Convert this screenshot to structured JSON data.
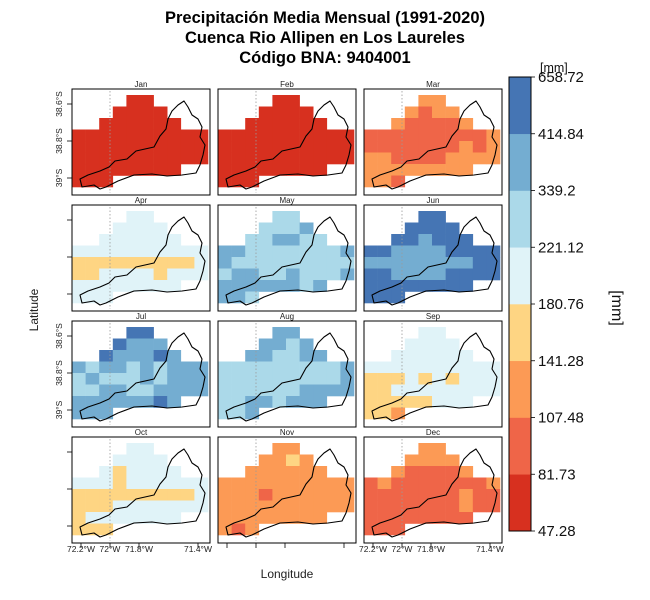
{
  "chart_data": {
    "type": "heatmap",
    "title": [
      "Precipitación Media Mensual (1991-2020)",
      "Cuenca Rio Allipen en Los Laureles",
      "Código BNA: 9404001"
    ],
    "xlabel": "Longitude",
    "ylabel": "Latitude",
    "x_tick_labels": [
      "72.2°W",
      "72°W",
      "71.8°W",
      "71.4°W"
    ],
    "y_tick_labels": [
      "38.6°S",
      "38.8°S",
      "39°S"
    ],
    "colorbar": {
      "unit_top": "[mm]",
      "unit_side": "[mm]",
      "breaks": [
        47.28,
        81.73,
        107.48,
        141.28,
        180.76,
        221.12,
        339.2,
        414.84,
        658.72
      ],
      "colors": [
        "#d7301f",
        "#ef6548",
        "#fc9a55",
        "#fed583",
        "#e0f3f8",
        "#abd9e9",
        "#74add1",
        "#4575b4"
      ]
    },
    "panels": [
      {
        "name": "Jan",
        "class_rows": [
          "....00....",
          "...0000...",
          "..000000..",
          "0000000000",
          "0000000000",
          "0000000000",
          "00000000..",
          "000......."
        ]
      },
      {
        "name": "Feb",
        "class_rows": [
          "....00....",
          "...0000...",
          "..000000..",
          "0000000000",
          "0000000000",
          "0000000000",
          "00000000..",
          "000......."
        ]
      },
      {
        "name": "Mar",
        "class_rows": [
          "....22....",
          "...2122...",
          "..211112..",
          "1111111112",
          "1111111212",
          "2211112222",
          "22222222..",
          "221......."
        ]
      },
      {
        "name": "Apr",
        "class_rows": [
          "....44....",
          "...4444...",
          "..444444..",
          "4444444444",
          "3333333334",
          "3344443444",
          "44444444..",
          "444......."
        ]
      },
      {
        "name": "May",
        "class_rows": [
          "....55....",
          "...5556...",
          "..556655..",
          "6655555556",
          "6555555555",
          "5665565556",
          "66666656..",
          "665......."
        ]
      },
      {
        "name": "Jun",
        "class_rows": [
          "....77....",
          "...7777...",
          "..776777..",
          "7766667777",
          "6666666677",
          "7766667777",
          "77777777..",
          "777......."
        ]
      },
      {
        "name": "Jul",
        "class_rows": [
          "....77....",
          "...7666...",
          "..766676..",
          "6566565666",
          "5655565666",
          "5566556666",
          "66666676..",
          "666......."
        ]
      },
      {
        "name": "Aug",
        "class_rows": [
          "....66....",
          "...6656...",
          "..665566..",
          "5555555556",
          "5555555556",
          "5555556666",
          "55665666..",
          "556......."
        ]
      },
      {
        "name": "Sep",
        "class_rows": [
          "....44....",
          "...4444...",
          "..444444..",
          "4444444444",
          "3334343444",
          "3344444444",
          "33333444..",
          "332......."
        ]
      },
      {
        "name": "Oct",
        "class_rows": [
          "....44....",
          "...4444...",
          "..434444..",
          "4443444444",
          "3333333334",
          "3334444444",
          "34444444..",
          "333......."
        ]
      },
      {
        "name": "Nov",
        "class_rows": [
          "....22....",
          "...2232...",
          "..222222..",
          "2222222222",
          "2221222222",
          "2222222222",
          "22222222..",
          "212......."
        ]
      },
      {
        "name": "Dec",
        "class_rows": [
          "....22....",
          "...2222...",
          "..211112..",
          "1211111112",
          "1111111211",
          "1111111211",
          "11111111..",
          "111......."
        ]
      }
    ]
  }
}
